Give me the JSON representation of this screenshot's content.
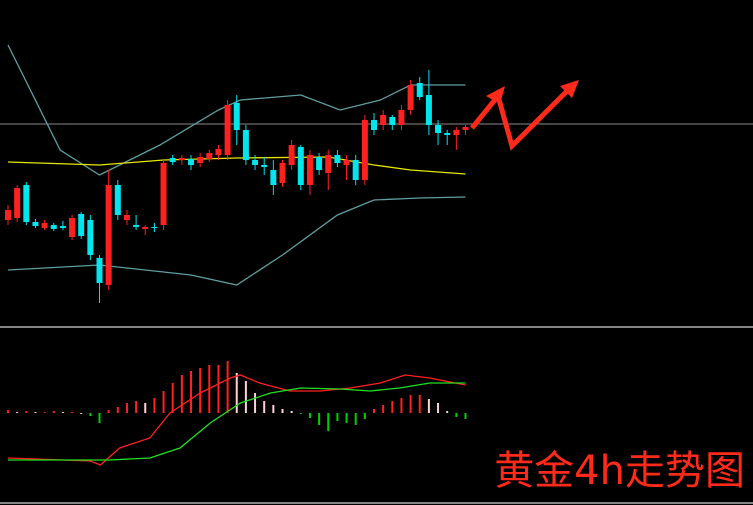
{
  "chart_data": [
    {
      "type": "candlestick",
      "open": [
        105,
        107,
        140,
        103,
        97,
        100,
        99,
        88,
        111,
        105,
        67,
        40,
        140,
        105,
        100,
        96,
        98,
        100,
        167,
        165,
        166,
        162,
        166,
        170,
        170,
        222,
        195,
        165,
        160,
        155,
        142,
        160,
        178,
        140,
        168,
        152,
        170,
        160,
        165,
        145,
        205,
        200,
        208,
        200,
        215,
        242,
        230,
        200,
        192,
        190,
        195
      ],
      "high": [
        120,
        140,
        143,
        106,
        105,
        102,
        104,
        110,
        113,
        110,
        70,
        155,
        145,
        115,
        110,
        100,
        102,
        165,
        170,
        170,
        170,
        172,
        175,
        180,
        225,
        230,
        200,
        170,
        168,
        165,
        165,
        185,
        180,
        175,
        172,
        175,
        175,
        170,
        170,
        210,
        212,
        215,
        210,
        220,
        245,
        248,
        255,
        205,
        195,
        198,
        200
      ],
      "low": [
        100,
        103,
        100,
        97,
        95,
        94,
        95,
        85,
        86,
        65,
        22,
        35,
        105,
        100,
        95,
        90,
        93,
        95,
        160,
        160,
        155,
        158,
        163,
        165,
        165,
        180,
        160,
        155,
        150,
        130,
        138,
        155,
        135,
        130,
        150,
        135,
        158,
        145,
        140,
        140,
        190,
        195,
        195,
        195,
        210,
        225,
        190,
        180,
        180,
        175,
        190
      ],
      "close": [
        115,
        137,
        103,
        99,
        102,
        96,
        97,
        107,
        89,
        70,
        42,
        140,
        110,
        110,
        98,
        98,
        97,
        162,
        163,
        167,
        160,
        168,
        172,
        176,
        220,
        195,
        165,
        160,
        158,
        140,
        162,
        180,
        140,
        170,
        155,
        170,
        162,
        165,
        145,
        205,
        195,
        210,
        200,
        215,
        240,
        228,
        200,
        192,
        190,
        195,
        198
      ],
      "up_color": "#ff2020",
      "down_color": "#00e5ee",
      "ylim": [
        0,
        325
      ],
      "hlines": [
        {
          "color": "#8a8a8a",
          "value": 201
        }
      ],
      "lines": [
        {
          "color": "#5f9ea0",
          "x": [
            0,
            5.7,
            10,
            16.6,
            23,
            25.4,
            32,
            36.3,
            40.7,
            44,
            50
          ],
          "values": [
            280,
            175,
            150,
            180,
            215,
            225,
            230,
            215,
            225,
            240,
            240
          ]
        },
        {
          "color": "#e6e600",
          "x": [
            0,
            10,
            17,
            25,
            35,
            40,
            44,
            50
          ],
          "values": [
            163,
            160,
            165,
            167,
            168,
            160,
            155,
            151
          ]
        },
        {
          "color": "#5f9ea0",
          "x": [
            0,
            10,
            20,
            25,
            30,
            36,
            40,
            45,
            50
          ],
          "values": [
            55,
            60,
            50,
            40,
            70,
            110,
            125,
            127,
            128
          ]
        }
      ]
    },
    {
      "type": "macd",
      "histogram": [
        3,
        1,
        2,
        1,
        1,
        2,
        1,
        1,
        0,
        -3,
        -10,
        3,
        6,
        10,
        12,
        10,
        15,
        22,
        30,
        38,
        42,
        45,
        48,
        48,
        52,
        40,
        32,
        20,
        12,
        8,
        4,
        2,
        -1,
        -5,
        -12,
        -18,
        -8,
        -10,
        -12,
        -6,
        4,
        8,
        12,
        15,
        18,
        18,
        14,
        10,
        2,
        -4,
        -6
      ],
      "rise_color": "#ff2020",
      "fall_color": "#ffd0d8",
      "negative_color": "#00d000",
      "ylim": [
        -92,
        83
      ],
      "lines": [
        {
          "color": "#ff2020",
          "x": [
            0,
            9,
            10.1,
            12.2,
            15.5,
            17.7,
            21,
            24.3,
            25.4,
            27.5,
            30.8,
            34.1,
            37.4,
            40.7,
            43.4,
            46.1,
            50
          ],
          "values": [
            -45,
            -48,
            -52,
            -35,
            -25,
            0,
            20,
            35,
            38,
            30,
            22,
            22,
            25,
            30,
            38,
            35,
            28
          ]
        },
        {
          "color": "#20e020",
          "x": [
            0,
            11.1,
            15.5,
            18.8,
            22.1,
            25.4,
            28.7,
            32,
            36.3,
            39.6,
            42.8,
            46.1,
            50
          ],
          "values": [
            -47,
            -47,
            -45,
            -35,
            -10,
            10,
            20,
            25,
            24,
            22,
            25,
            30,
            30
          ]
        }
      ]
    }
  ],
  "annotation": {
    "text": "黄金4h走势图"
  }
}
